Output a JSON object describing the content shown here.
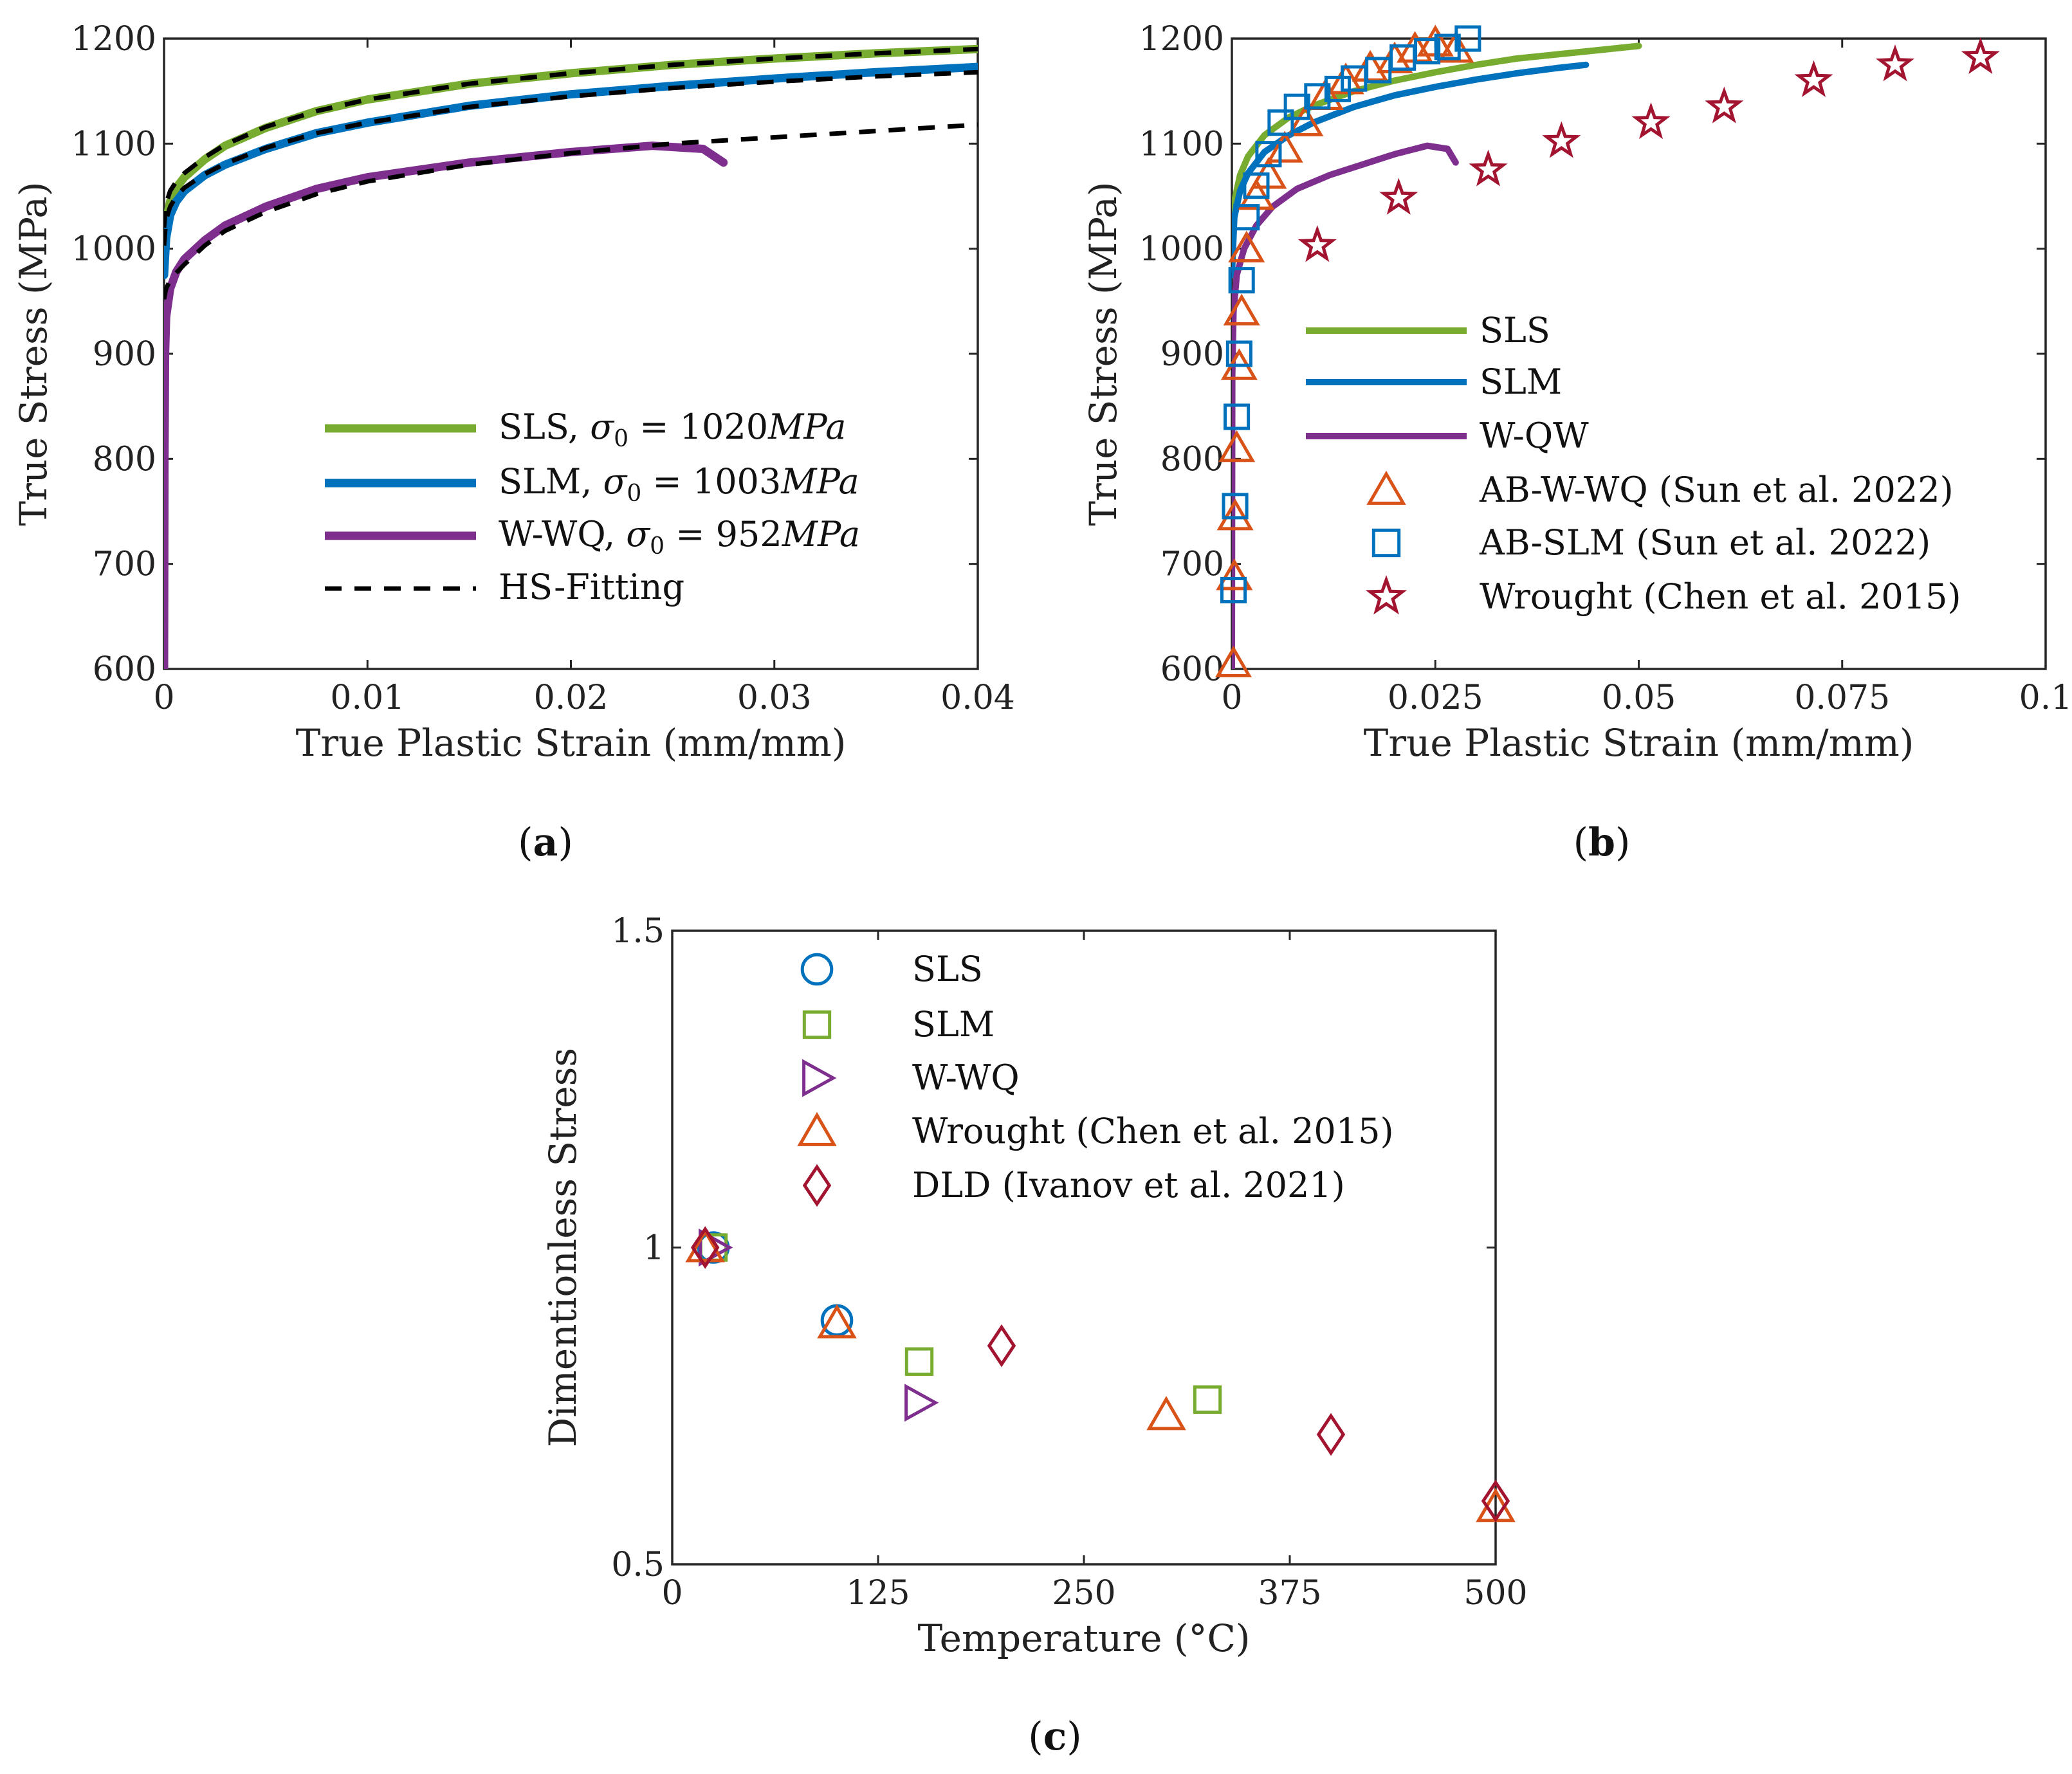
{
  "panels": [
    {
      "label_open": "(",
      "label_letter": "a",
      "label_close": ")"
    },
    {
      "label_open": "(",
      "label_letter": "b",
      "label_close": ")"
    },
    {
      "label_open": "(",
      "label_letter": "c",
      "label_close": ")"
    }
  ],
  "chart_data": [
    {
      "type": "line",
      "xlabel": "True Plastic Strain (mm/mm)",
      "ylabel": "True Stress (MPa)",
      "xlim": [
        0,
        0.04
      ],
      "ylim": [
        600,
        1200
      ],
      "xticks": [
        0,
        0.01,
        0.02,
        0.03,
        0.04
      ],
      "xtick_labels": [
        "0",
        "0.01",
        "0.02",
        "0.03",
        "0.04"
      ],
      "yticks": [
        600,
        700,
        800,
        900,
        1000,
        1100,
        1200
      ],
      "ytick_labels": [
        "600",
        "700",
        "800",
        "900",
        "1000",
        "1100",
        "1200"
      ],
      "legend_position": "bottom-right",
      "series": [
        {
          "name": "SLS, σ₀ = 1020MPa",
          "name_prefix": "SLS, ",
          "name_sigma": "σ",
          "name_sub": "0",
          "name_eq": " = 1020",
          "name_unit": "MPa",
          "color": "#77ac30",
          "style": "solid",
          "x": [
            0,
            0.0001,
            0.0003,
            0.0006,
            0.001,
            0.002,
            0.003,
            0.005,
            0.0075,
            0.01,
            0.015,
            0.02,
            0.025,
            0.03,
            0.035,
            0.04
          ],
          "y": [
            985,
            1025,
            1045,
            1058,
            1068,
            1085,
            1098,
            1115,
            1131,
            1142,
            1157,
            1167,
            1175,
            1181,
            1186,
            1190
          ]
        },
        {
          "name": "SLM, σ₀ = 1003MPa",
          "name_prefix": "SLM, ",
          "name_sigma": "σ",
          "name_sub": "0",
          "name_eq": " = 1003",
          "name_unit": "MPa",
          "color": "#0072bd",
          "style": "solid",
          "x": [
            0,
            0.0001,
            0.0003,
            0.0006,
            0.001,
            0.002,
            0.003,
            0.005,
            0.0075,
            0.01,
            0.015,
            0.02,
            0.025,
            0.03,
            0.035,
            0.04
          ],
          "y": [
            975,
            1010,
            1032,
            1045,
            1055,
            1070,
            1080,
            1095,
            1110,
            1120,
            1136,
            1147,
            1155,
            1162,
            1168,
            1173
          ]
        },
        {
          "name": "W-WQ, σ₀ = 952MPa",
          "name_prefix": "W-WQ, ",
          "name_sigma": "σ",
          "name_sub": "0",
          "name_eq": " = 952",
          "name_unit": "MPa",
          "color": "#7e2f8e",
          "style": "solid",
          "x": [
            0,
            2e-05,
            5e-05,
            0.0001,
            0.0003,
            0.0006,
            0.001,
            0.002,
            0.003,
            0.005,
            0.0075,
            0.01,
            0.015,
            0.02,
            0.024,
            0.0265,
            0.0275
          ],
          "y": [
            600,
            790,
            900,
            935,
            962,
            978,
            990,
            1008,
            1022,
            1040,
            1057,
            1068,
            1082,
            1092,
            1098,
            1095,
            1082
          ]
        },
        {
          "name": "HS-Fitting",
          "color": "#000000",
          "style": "dashed",
          "x": [
            0,
            0.0001,
            0.0003,
            0.0006,
            0.001,
            0.002,
            0.003,
            0.005,
            0.0075,
            0.01,
            0.015,
            0.02,
            0.025,
            0.03,
            0.035,
            0.04
          ],
          "y": [
            1020,
            1043,
            1055,
            1064,
            1072,
            1087,
            1099,
            1116,
            1131,
            1142,
            1157,
            1167,
            1175,
            1181,
            1186,
            1190
          ]
        },
        {
          "name": "",
          "color": "#000000",
          "style": "dashed",
          "in_legend": false,
          "x": [
            0,
            0.0001,
            0.0003,
            0.0006,
            0.001,
            0.002,
            0.003,
            0.005,
            0.0075,
            0.01,
            0.015,
            0.02,
            0.025,
            0.03,
            0.035,
            0.04
          ],
          "y": [
            1003,
            1028,
            1040,
            1050,
            1058,
            1071,
            1081,
            1096,
            1110,
            1120,
            1135,
            1145,
            1153,
            1159,
            1164,
            1168
          ]
        },
        {
          "name": "",
          "color": "#000000",
          "style": "dashed",
          "in_legend": false,
          "x": [
            0,
            0.0001,
            0.0003,
            0.0006,
            0.001,
            0.002,
            0.003,
            0.005,
            0.0075,
            0.01,
            0.015,
            0.02,
            0.025,
            0.03,
            0.035,
            0.04
          ],
          "y": [
            952,
            962,
            970,
            977,
            985,
            1003,
            1017,
            1035,
            1052,
            1064,
            1080,
            1091,
            1100,
            1106,
            1112,
            1118
          ]
        }
      ]
    },
    {
      "type": "line",
      "xlabel": "True Plastic Strain (mm/mm)",
      "ylabel": "True Stress (MPa)",
      "xlim": [
        0,
        0.1
      ],
      "ylim": [
        600,
        1200
      ],
      "xticks": [
        0,
        0.025,
        0.05,
        0.075,
        0.1
      ],
      "xtick_labels": [
        "0",
        "0.025",
        "0.05",
        "0.075",
        "0.1"
      ],
      "yticks": [
        600,
        700,
        800,
        900,
        1000,
        1100,
        1200
      ],
      "ytick_labels": [
        "600",
        "700",
        "800",
        "900",
        "1000",
        "1100",
        "1200"
      ],
      "legend_position": "bottom-right",
      "series": [
        {
          "name": "SLS",
          "color": "#77ac30",
          "style": "solid",
          "marker": "none",
          "x": [
            0,
            0.0003,
            0.001,
            0.002,
            0.004,
            0.007,
            0.01,
            0.015,
            0.02,
            0.025,
            0.03,
            0.035,
            0.04,
            0.045,
            0.05
          ],
          "y": [
            990,
            1045,
            1070,
            1088,
            1108,
            1125,
            1136,
            1150,
            1160,
            1168,
            1175,
            1181,
            1185,
            1189,
            1193
          ]
        },
        {
          "name": "SLM",
          "color": "#0072bd",
          "style": "solid",
          "marker": "none",
          "x": [
            0,
            0.0003,
            0.001,
            0.002,
            0.004,
            0.007,
            0.01,
            0.015,
            0.02,
            0.025,
            0.03,
            0.035,
            0.04,
            0.0435
          ],
          "y": [
            975,
            1030,
            1055,
            1072,
            1092,
            1108,
            1120,
            1135,
            1146,
            1154,
            1161,
            1167,
            1172,
            1175
          ]
        },
        {
          "name": "W-QW",
          "color": "#7e2f8e",
          "style": "solid",
          "marker": "none",
          "x": [
            0,
            5e-05,
            0.0002,
            0.0006,
            0.0015,
            0.003,
            0.005,
            0.008,
            0.012,
            0.016,
            0.02,
            0.024,
            0.0265,
            0.0275
          ],
          "y": [
            600,
            880,
            940,
            975,
            1000,
            1022,
            1040,
            1057,
            1070,
            1080,
            1090,
            1098,
            1095,
            1082
          ]
        },
        {
          "name": "AB-W-WQ (Sun et al. 2022)",
          "color": "#d95319",
          "style": "none",
          "marker": "triangle",
          "x": [
            0.0002,
            0.0003,
            0.0004,
            0.0006,
            0.0009,
            0.0012,
            0.0018,
            0.003,
            0.0045,
            0.0065,
            0.009,
            0.0115,
            0.014,
            0.017,
            0.02,
            0.0225,
            0.025,
            0.0275
          ],
          "y": [
            605,
            688,
            745,
            810,
            888,
            940,
            1000,
            1050,
            1070,
            1095,
            1120,
            1145,
            1160,
            1172,
            1180,
            1190,
            1196,
            1190
          ]
        },
        {
          "name": "AB-SLM (Sun et al. 2022)",
          "color": "#0072bd",
          "style": "none",
          "marker": "square",
          "x": [
            0.0002,
            0.0004,
            0.0006,
            0.0009,
            0.0012,
            0.0018,
            0.003,
            0.0045,
            0.006,
            0.008,
            0.0105,
            0.013,
            0.015,
            0.018,
            0.021,
            0.024,
            0.0265,
            0.029
          ],
          "y": [
            675,
            755,
            840,
            900,
            970,
            1030,
            1060,
            1090,
            1120,
            1135,
            1145,
            1152,
            1162,
            1170,
            1182,
            1188,
            1192,
            1200
          ]
        },
        {
          "name": "Wrought (Chen et al. 2015)",
          "color": "#a2142f",
          "style": "none",
          "marker": "star",
          "x": [
            0.0105,
            0.0205,
            0.0315,
            0.0405,
            0.0515,
            0.0605,
            0.0715,
            0.0815,
            0.092
          ],
          "y": [
            1003,
            1048,
            1075,
            1102,
            1120,
            1135,
            1160,
            1175,
            1182
          ]
        }
      ]
    },
    {
      "type": "scatter",
      "xlabel": "Temperature (°C)",
      "ylabel": "Dimentionless Stress",
      "xlim": [
        0,
        500
      ],
      "ylim": [
        0.5,
        1.5
      ],
      "xticks": [
        0,
        125,
        250,
        375,
        500
      ],
      "xtick_labels": [
        "0",
        "125",
        "250",
        "375",
        "500"
      ],
      "yticks": [
        0.5,
        1,
        1.5
      ],
      "ytick_labels": [
        "0.5",
        "1",
        "1.5"
      ],
      "legend_position": "top-center",
      "series": [
        {
          "name": "SLS",
          "color": "#0072bd",
          "marker": "circle",
          "x": [
            25,
            100
          ],
          "y": [
            1.0,
            0.885
          ]
        },
        {
          "name": "SLM",
          "color": "#77ac30",
          "marker": "square",
          "x": [
            25,
            150,
            325
          ],
          "y": [
            1.0,
            0.82,
            0.76
          ]
        },
        {
          "name": "W-WQ",
          "color": "#7e2f8e",
          "marker": "triangle-right",
          "x": [
            25,
            150
          ],
          "y": [
            1.0,
            0.755
          ]
        },
        {
          "name": "Wrought (Chen et al. 2015)",
          "color": "#d95319",
          "marker": "triangle",
          "x": [
            20,
            100,
            300,
            500
          ],
          "y": [
            1.0,
            0.88,
            0.735,
            0.59
          ]
        },
        {
          "name": "DLD (Ivanov et al. 2021)",
          "color": "#a2142f",
          "marker": "diamond",
          "x": [
            20,
            200,
            400,
            500
          ],
          "y": [
            1.0,
            0.845,
            0.705,
            0.6
          ]
        }
      ]
    }
  ]
}
